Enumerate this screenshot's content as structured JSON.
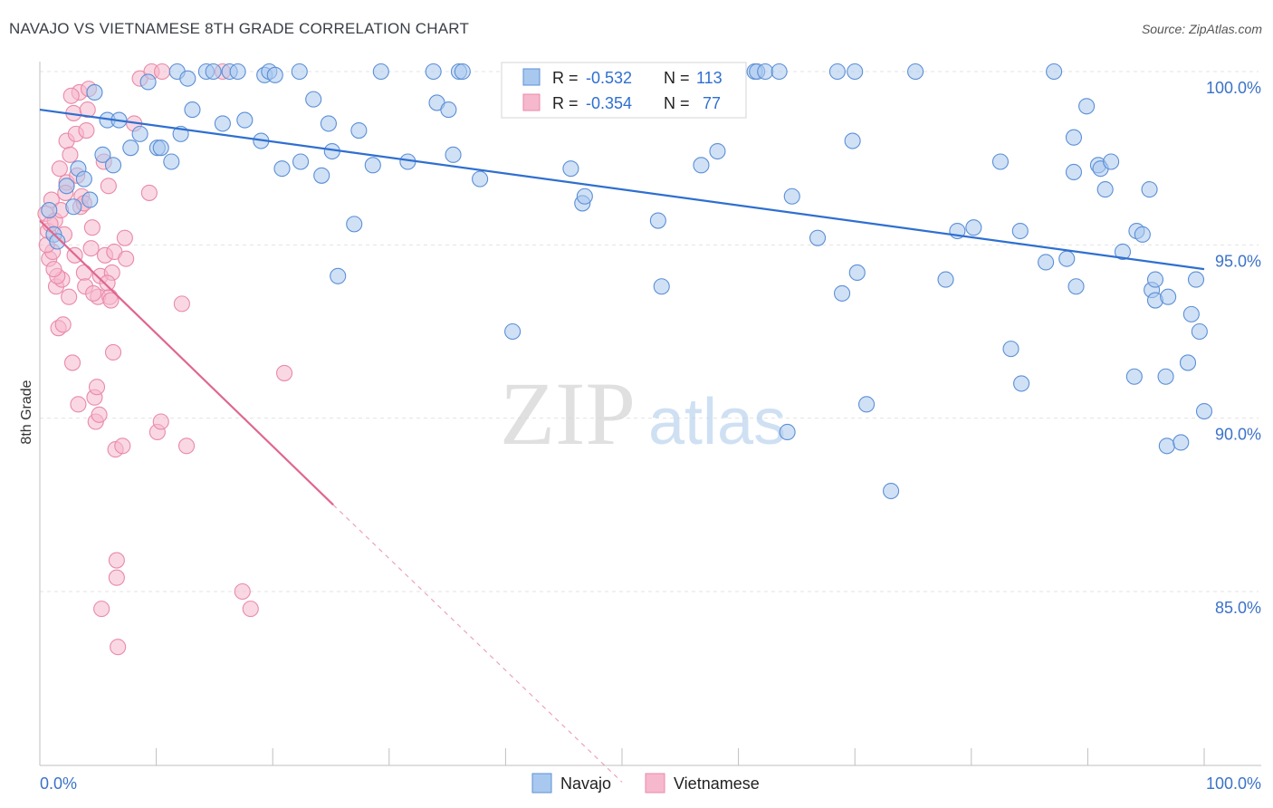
{
  "title": "NAVAJO VS VIETNAMESE 8TH GRADE CORRELATION CHART",
  "source": "Source: ZipAtlas.com",
  "watermark": {
    "zip": "ZIP",
    "atlas": "atlas"
  },
  "legend_box": [
    {
      "r_label": "R =",
      "r_value": "-0.532",
      "n_label": "N =",
      "n_value": "113"
    },
    {
      "r_label": "R =",
      "r_value": "-0.354",
      "n_label": "N =",
      "n_value": "77"
    }
  ],
  "colors": {
    "navajo_fill": "#a9c8ef",
    "navajo_stroke": "#5b8fd6",
    "navajo_line": "#2f6fd0",
    "viet_fill": "#f6b8cc",
    "viet_stroke": "#e98aa8",
    "viet_line": "#e0668f",
    "value_text": "#2f6fd0",
    "axis_text": "#3b72c8"
  },
  "chart_data": {
    "type": "scatter",
    "title": "NAVAJO VS VIETNAMESE 8TH GRADE CORRELATION CHART",
    "xlabel": "",
    "ylabel": "8th Grade",
    "xlim": [
      0,
      100
    ],
    "ylim": [
      80.0,
      100.8
    ],
    "x_tick_labels": [
      {
        "value": 0,
        "label": "0.0%"
      },
      {
        "value": 100,
        "label": "100.0%"
      }
    ],
    "y_tick_labels": [
      {
        "value": 100,
        "label": "100.0%"
      },
      {
        "value": 95,
        "label": "95.0%"
      },
      {
        "value": 90,
        "label": "90.0%"
      },
      {
        "value": 85,
        "label": "85.0%"
      }
    ],
    "grid": true,
    "legend_position": "bottom-center",
    "series": [
      {
        "name": "Navajo",
        "r": -0.532,
        "n": 113,
        "trend": {
          "x0": 0,
          "y0": 98.9,
          "x1": 100,
          "y1": 94.3
        },
        "points": [
          [
            0.8,
            96.0
          ],
          [
            1.2,
            95.3
          ],
          [
            1.5,
            95.1
          ],
          [
            2.3,
            96.7
          ],
          [
            2.9,
            96.1
          ],
          [
            3.3,
            97.2
          ],
          [
            3.8,
            96.9
          ],
          [
            4.3,
            96.3
          ],
          [
            4.7,
            99.4
          ],
          [
            5.4,
            97.6
          ],
          [
            5.8,
            98.6
          ],
          [
            6.3,
            97.3
          ],
          [
            6.8,
            98.6
          ],
          [
            7.8,
            97.8
          ],
          [
            8.6,
            98.2
          ],
          [
            9.3,
            99.7
          ],
          [
            10.1,
            97.8
          ],
          [
            10.4,
            97.8
          ],
          [
            11.3,
            97.4
          ],
          [
            11.8,
            100.0
          ],
          [
            12.1,
            98.2
          ],
          [
            12.7,
            99.8
          ],
          [
            13.1,
            98.9
          ],
          [
            14.3,
            100.0
          ],
          [
            14.9,
            100.0
          ],
          [
            15.7,
            98.5
          ],
          [
            16.3,
            100.0
          ],
          [
            17.0,
            100.0
          ],
          [
            17.6,
            98.6
          ],
          [
            19.0,
            98.0
          ],
          [
            19.3,
            99.9
          ],
          [
            19.7,
            100.0
          ],
          [
            20.2,
            99.9
          ],
          [
            20.8,
            97.2
          ],
          [
            22.3,
            100.0
          ],
          [
            22.4,
            97.4
          ],
          [
            23.5,
            99.2
          ],
          [
            24.2,
            97.0
          ],
          [
            24.8,
            98.5
          ],
          [
            25.1,
            97.7
          ],
          [
            25.6,
            94.1
          ],
          [
            27.0,
            95.6
          ],
          [
            27.4,
            98.3
          ],
          [
            28.6,
            97.3
          ],
          [
            29.3,
            100.0
          ],
          [
            31.6,
            97.4
          ],
          [
            33.8,
            100.0
          ],
          [
            34.1,
            99.1
          ],
          [
            35.1,
            98.9
          ],
          [
            35.5,
            97.6
          ],
          [
            36.0,
            100.0
          ],
          [
            36.3,
            100.0
          ],
          [
            37.8,
            96.9
          ],
          [
            40.6,
            92.5
          ],
          [
            45.6,
            97.2
          ],
          [
            46.6,
            96.2
          ],
          [
            46.8,
            96.4
          ],
          [
            53.1,
            95.7
          ],
          [
            53.4,
            93.8
          ],
          [
            53.8,
            100.0
          ],
          [
            56.8,
            97.3
          ],
          [
            58.2,
            97.7
          ],
          [
            61.4,
            100.0
          ],
          [
            61.6,
            100.0
          ],
          [
            62.3,
            100.0
          ],
          [
            63.5,
            100.0
          ],
          [
            64.2,
            89.6
          ],
          [
            64.6,
            96.4
          ],
          [
            66.8,
            95.2
          ],
          [
            68.5,
            100.0
          ],
          [
            68.9,
            93.6
          ],
          [
            69.8,
            98.0
          ],
          [
            70.0,
            100.0
          ],
          [
            70.2,
            94.2
          ],
          [
            71.0,
            90.4
          ],
          [
            73.1,
            87.9
          ],
          [
            75.2,
            100.0
          ],
          [
            77.8,
            94.0
          ],
          [
            78.8,
            95.4
          ],
          [
            80.2,
            95.5
          ],
          [
            82.5,
            97.4
          ],
          [
            83.4,
            92.0
          ],
          [
            84.2,
            95.4
          ],
          [
            84.3,
            91.0
          ],
          [
            86.4,
            94.5
          ],
          [
            87.1,
            100.0
          ],
          [
            88.2,
            94.6
          ],
          [
            88.8,
            97.1
          ],
          [
            88.8,
            98.1
          ],
          [
            89.0,
            93.8
          ],
          [
            89.9,
            99.0
          ],
          [
            90.9,
            97.3
          ],
          [
            91.1,
            97.2
          ],
          [
            91.5,
            96.6
          ],
          [
            92.0,
            97.4
          ],
          [
            93.0,
            94.8
          ],
          [
            94.0,
            91.2
          ],
          [
            94.2,
            95.4
          ],
          [
            94.7,
            95.3
          ],
          [
            95.3,
            96.6
          ],
          [
            95.5,
            93.7
          ],
          [
            95.8,
            94.0
          ],
          [
            95.8,
            93.4
          ],
          [
            96.7,
            91.2
          ],
          [
            96.8,
            89.2
          ],
          [
            96.9,
            93.5
          ],
          [
            98.0,
            89.3
          ],
          [
            98.6,
            91.6
          ],
          [
            98.9,
            93.0
          ],
          [
            99.3,
            94.0
          ],
          [
            99.6,
            92.5
          ],
          [
            100.0,
            90.2
          ]
        ]
      },
      {
        "name": "Vietnamese",
        "r": -0.354,
        "n": 77,
        "trend": {
          "x0": 0,
          "y0": 95.7,
          "x1": 25.2,
          "y1": 87.5,
          "dash_x1": 50,
          "dash_y1": 79.5
        },
        "points": [
          [
            0.5,
            95.9
          ],
          [
            0.7,
            95.4
          ],
          [
            0.8,
            94.6
          ],
          [
            1.0,
            96.3
          ],
          [
            1.1,
            94.8
          ],
          [
            1.3,
            95.7
          ],
          [
            1.4,
            93.8
          ],
          [
            1.6,
            92.6
          ],
          [
            1.7,
            97.2
          ],
          [
            1.9,
            94.0
          ],
          [
            2.1,
            95.3
          ],
          [
            2.3,
            96.8
          ],
          [
            2.3,
            98.0
          ],
          [
            2.5,
            93.5
          ],
          [
            2.6,
            97.6
          ],
          [
            2.8,
            91.6
          ],
          [
            2.9,
            98.8
          ],
          [
            3.0,
            94.7
          ],
          [
            3.1,
            98.2
          ],
          [
            3.3,
            90.4
          ],
          [
            3.4,
            99.4
          ],
          [
            3.5,
            96.1
          ],
          [
            3.6,
            96.4
          ],
          [
            3.8,
            94.2
          ],
          [
            3.9,
            93.8
          ],
          [
            4.0,
            98.3
          ],
          [
            4.1,
            98.9
          ],
          [
            4.2,
            99.5
          ],
          [
            4.4,
            94.9
          ],
          [
            4.5,
            95.5
          ],
          [
            4.7,
            90.6
          ],
          [
            4.8,
            89.9
          ],
          [
            4.9,
            90.9
          ],
          [
            5.0,
            93.5
          ],
          [
            5.1,
            90.1
          ],
          [
            5.2,
            94.1
          ],
          [
            5.3,
            84.5
          ],
          [
            5.5,
            97.4
          ],
          [
            5.6,
            94.7
          ],
          [
            5.9,
            96.7
          ],
          [
            6.0,
            93.5
          ],
          [
            6.1,
            93.4
          ],
          [
            6.2,
            94.2
          ],
          [
            6.3,
            91.9
          ],
          [
            6.4,
            94.8
          ],
          [
            6.5,
            89.1
          ],
          [
            6.6,
            85.9
          ],
          [
            6.6,
            85.4
          ],
          [
            6.7,
            83.4
          ],
          [
            7.1,
            89.2
          ],
          [
            7.3,
            95.2
          ],
          [
            7.4,
            94.6
          ],
          [
            8.1,
            98.5
          ],
          [
            8.6,
            99.8
          ],
          [
            9.4,
            96.5
          ],
          [
            9.6,
            100.0
          ],
          [
            10.1,
            89.6
          ],
          [
            10.4,
            89.9
          ],
          [
            10.5,
            100.0
          ],
          [
            12.2,
            93.3
          ],
          [
            12.6,
            89.2
          ],
          [
            15.7,
            100.0
          ],
          [
            17.4,
            85.0
          ],
          [
            18.1,
            84.5
          ],
          [
            21.0,
            91.3
          ],
          [
            2.2,
            96.5
          ],
          [
            1.5,
            94.1
          ],
          [
            3.8,
            96.2
          ],
          [
            0.6,
            95.0
          ],
          [
            2.7,
            99.3
          ],
          [
            4.6,
            93.6
          ],
          [
            1.2,
            94.3
          ],
          [
            0.9,
            95.6
          ],
          [
            2.0,
            92.7
          ],
          [
            5.8,
            93.9
          ],
          [
            3.2,
            97.0
          ],
          [
            1.8,
            96.0
          ]
        ]
      }
    ]
  }
}
